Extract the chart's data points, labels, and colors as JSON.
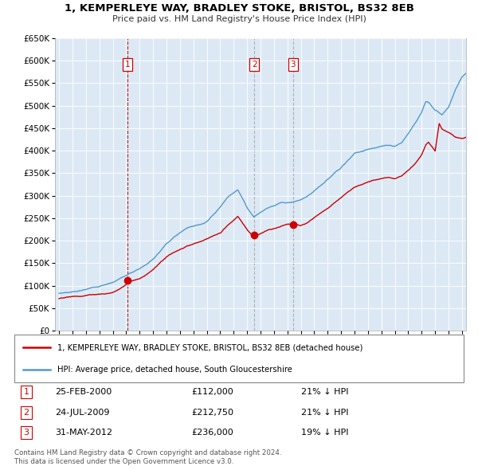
{
  "title": "1, KEMPERLEYE WAY, BRADLEY STOKE, BRISTOL, BS32 8EB",
  "subtitle": "Price paid vs. HM Land Registry's House Price Index (HPI)",
  "legend_line1": "1, KEMPERLEYE WAY, BRADLEY STOKE, BRISTOL, BS32 8EB (detached house)",
  "legend_line2": "HPI: Average price, detached house, South Gloucestershire",
  "footer1": "Contains HM Land Registry data © Crown copyright and database right 2024.",
  "footer2": "This data is licensed under the Open Government Licence v3.0.",
  "table": [
    {
      "num": "1",
      "date": "25-FEB-2000",
      "price": "£112,000",
      "hpi": "21% ↓ HPI"
    },
    {
      "num": "2",
      "date": "24-JUL-2009",
      "price": "£212,750",
      "hpi": "21% ↓ HPI"
    },
    {
      "num": "3",
      "date": "31-MAY-2012",
      "price": "£236,000",
      "hpi": "19% ↓ HPI"
    }
  ],
  "sales": [
    {
      "year": 2000.12,
      "price": 112000,
      "vline_color": "#cc0000"
    },
    {
      "year": 2009.55,
      "price": 212750,
      "vline_color": "#aaaaaa"
    },
    {
      "year": 2012.42,
      "price": 236000,
      "vline_color": "#aaaaaa"
    }
  ],
  "hpi_color": "#5599cc",
  "price_color": "#cc0000",
  "marker_border_color": "#cc0000",
  "plot_bg_color": "#dce9f5",
  "ylim": [
    0,
    650000
  ],
  "yticks": [
    0,
    50000,
    100000,
    150000,
    200000,
    250000,
    300000,
    350000,
    400000,
    450000,
    500000,
    550000,
    600000,
    650000
  ],
  "xlim_start": 1994.7,
  "xlim_end": 2025.3,
  "hpi_segments": [
    [
      1995.0,
      83000
    ],
    [
      1995.5,
      85000
    ],
    [
      1996.0,
      87000
    ],
    [
      1996.5,
      89000
    ],
    [
      1997.0,
      91000
    ],
    [
      1997.5,
      95000
    ],
    [
      1998.0,
      99000
    ],
    [
      1998.5,
      103000
    ],
    [
      1999.0,
      108000
    ],
    [
      1999.5,
      116000
    ],
    [
      2000.0,
      123000
    ],
    [
      2000.5,
      131000
    ],
    [
      2001.0,
      138000
    ],
    [
      2001.5,
      148000
    ],
    [
      2002.0,
      160000
    ],
    [
      2002.5,
      178000
    ],
    [
      2003.0,
      196000
    ],
    [
      2003.5,
      210000
    ],
    [
      2004.0,
      222000
    ],
    [
      2004.5,
      232000
    ],
    [
      2005.0,
      238000
    ],
    [
      2005.5,
      242000
    ],
    [
      2006.0,
      248000
    ],
    [
      2006.5,
      262000
    ],
    [
      2007.0,
      278000
    ],
    [
      2007.5,
      298000
    ],
    [
      2008.0,
      310000
    ],
    [
      2008.3,
      318000
    ],
    [
      2008.5,
      308000
    ],
    [
      2009.0,
      278000
    ],
    [
      2009.5,
      258000
    ],
    [
      2010.0,
      268000
    ],
    [
      2010.5,
      278000
    ],
    [
      2011.0,
      284000
    ],
    [
      2011.5,
      290000
    ],
    [
      2012.0,
      290000
    ],
    [
      2012.5,
      292000
    ],
    [
      2013.0,
      296000
    ],
    [
      2013.5,
      302000
    ],
    [
      2014.0,
      312000
    ],
    [
      2014.5,
      324000
    ],
    [
      2015.0,
      336000
    ],
    [
      2015.5,
      352000
    ],
    [
      2016.0,
      365000
    ],
    [
      2016.5,
      380000
    ],
    [
      2017.0,
      395000
    ],
    [
      2017.5,
      400000
    ],
    [
      2018.0,
      405000
    ],
    [
      2018.5,
      408000
    ],
    [
      2019.0,
      410000
    ],
    [
      2019.5,
      412000
    ],
    [
      2020.0,
      410000
    ],
    [
      2020.5,
      418000
    ],
    [
      2021.0,
      438000
    ],
    [
      2021.5,
      462000
    ],
    [
      2022.0,
      488000
    ],
    [
      2022.3,
      510000
    ],
    [
      2022.5,
      508000
    ],
    [
      2023.0,
      490000
    ],
    [
      2023.5,
      478000
    ],
    [
      2024.0,
      495000
    ],
    [
      2024.5,
      535000
    ],
    [
      2025.0,
      565000
    ],
    [
      2025.3,
      572000
    ]
  ],
  "red_segments": [
    [
      1995.0,
      71000
    ],
    [
      1995.5,
      73000
    ],
    [
      1996.0,
      75000
    ],
    [
      1996.5,
      76000
    ],
    [
      1997.0,
      78000
    ],
    [
      1997.5,
      80000
    ],
    [
      1998.0,
      82000
    ],
    [
      1998.5,
      84000
    ],
    [
      1999.0,
      87000
    ],
    [
      1999.5,
      95000
    ],
    [
      2000.0,
      106000
    ],
    [
      2000.12,
      112000
    ],
    [
      2000.5,
      114000
    ],
    [
      2001.0,
      118000
    ],
    [
      2001.5,
      128000
    ],
    [
      2002.0,
      140000
    ],
    [
      2002.5,
      154000
    ],
    [
      2003.0,
      168000
    ],
    [
      2003.5,
      178000
    ],
    [
      2004.0,
      186000
    ],
    [
      2004.5,
      193000
    ],
    [
      2005.0,
      198000
    ],
    [
      2005.5,
      202000
    ],
    [
      2006.0,
      208000
    ],
    [
      2006.5,
      215000
    ],
    [
      2007.0,
      222000
    ],
    [
      2007.5,
      237000
    ],
    [
      2008.0,
      248000
    ],
    [
      2008.3,
      258000
    ],
    [
      2008.5,
      250000
    ],
    [
      2009.0,
      228000
    ],
    [
      2009.5,
      210000
    ],
    [
      2009.55,
      212750
    ],
    [
      2010.0,
      218000
    ],
    [
      2010.5,
      225000
    ],
    [
      2011.0,
      228000
    ],
    [
      2011.5,
      232000
    ],
    [
      2012.0,
      236000
    ],
    [
      2012.42,
      236000
    ],
    [
      2012.5,
      238000
    ],
    [
      2013.0,
      232000
    ],
    [
      2013.5,
      238000
    ],
    [
      2014.0,
      248000
    ],
    [
      2014.5,
      258000
    ],
    [
      2015.0,
      268000
    ],
    [
      2015.5,
      280000
    ],
    [
      2016.0,
      292000
    ],
    [
      2016.5,
      305000
    ],
    [
      2017.0,
      316000
    ],
    [
      2017.5,
      322000
    ],
    [
      2018.0,
      328000
    ],
    [
      2018.5,
      332000
    ],
    [
      2019.0,
      335000
    ],
    [
      2019.5,
      338000
    ],
    [
      2020.0,
      335000
    ],
    [
      2020.5,
      342000
    ],
    [
      2021.0,
      355000
    ],
    [
      2021.5,
      370000
    ],
    [
      2022.0,
      390000
    ],
    [
      2022.3,
      412000
    ],
    [
      2022.5,
      418000
    ],
    [
      2023.0,
      398000
    ],
    [
      2023.3,
      460000
    ],
    [
      2023.5,
      448000
    ],
    [
      2024.0,
      440000
    ],
    [
      2024.5,
      430000
    ],
    [
      2025.0,
      428000
    ],
    [
      2025.3,
      430000
    ]
  ]
}
